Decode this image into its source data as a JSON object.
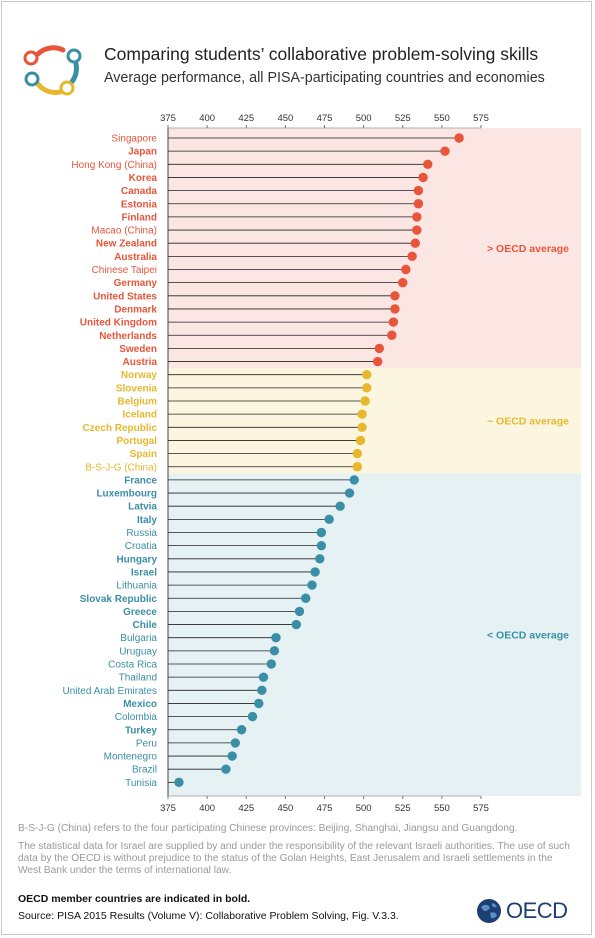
{
  "title": "Comparing students’ collaborative problem-solving skills",
  "subtitle": "Average performance, all PISA-participating countries and economies",
  "colors": {
    "above": "#e8553a",
    "similar": "#e6b82e",
    "below": "#3a8fa6",
    "above_bg": "#fbe6e4",
    "similar_bg": "#fcf6e0",
    "below_bg": "#e6f1f4"
  },
  "chart_data": {
    "type": "lollipop",
    "xlim": [
      375,
      575
    ],
    "xticks": [
      "375",
      "400",
      "425",
      "450",
      "475",
      "500",
      "525",
      "550",
      "575"
    ],
    "groups": [
      {
        "label": "> OECD average",
        "key": "above"
      },
      {
        "label": "~ OECD average",
        "key": "similar"
      },
      {
        "label": "< OECD average",
        "key": "below"
      }
    ],
    "items": [
      {
        "name": "Singapore",
        "value": 561,
        "group": "above",
        "oecd": false
      },
      {
        "name": "Japan",
        "value": 552,
        "group": "above",
        "oecd": true
      },
      {
        "name": "Hong Kong (China)",
        "value": 541,
        "group": "above",
        "oecd": false
      },
      {
        "name": "Korea",
        "value": 538,
        "group": "above",
        "oecd": true
      },
      {
        "name": "Canada",
        "value": 535,
        "group": "above",
        "oecd": true
      },
      {
        "name": "Estonia",
        "value": 535,
        "group": "above",
        "oecd": true
      },
      {
        "name": "Finland",
        "value": 534,
        "group": "above",
        "oecd": true
      },
      {
        "name": "Macao (China)",
        "value": 534,
        "group": "above",
        "oecd": false
      },
      {
        "name": "New Zealand",
        "value": 533,
        "group": "above",
        "oecd": true
      },
      {
        "name": "Australia",
        "value": 531,
        "group": "above",
        "oecd": true
      },
      {
        "name": "Chinese Taipei",
        "value": 527,
        "group": "above",
        "oecd": false
      },
      {
        "name": "Germany",
        "value": 525,
        "group": "above",
        "oecd": true
      },
      {
        "name": "United States",
        "value": 520,
        "group": "above",
        "oecd": true
      },
      {
        "name": "Denmark",
        "value": 520,
        "group": "above",
        "oecd": true
      },
      {
        "name": "United Kingdom",
        "value": 519,
        "group": "above",
        "oecd": true
      },
      {
        "name": "Netherlands",
        "value": 518,
        "group": "above",
        "oecd": true
      },
      {
        "name": "Sweden",
        "value": 510,
        "group": "above",
        "oecd": true
      },
      {
        "name": "Austria",
        "value": 509,
        "group": "above",
        "oecd": true
      },
      {
        "name": "Norway",
        "value": 502,
        "group": "similar",
        "oecd": true
      },
      {
        "name": "Slovenia",
        "value": 502,
        "group": "similar",
        "oecd": true
      },
      {
        "name": "Belgium",
        "value": 501,
        "group": "similar",
        "oecd": true
      },
      {
        "name": "Iceland",
        "value": 499,
        "group": "similar",
        "oecd": true
      },
      {
        "name": "Czech Republic",
        "value": 499,
        "group": "similar",
        "oecd": true
      },
      {
        "name": "Portugal",
        "value": 498,
        "group": "similar",
        "oecd": true
      },
      {
        "name": "Spain",
        "value": 496,
        "group": "similar",
        "oecd": true
      },
      {
        "name": "B-S-J-G (China)",
        "value": 496,
        "group": "similar",
        "oecd": false
      },
      {
        "name": "France",
        "value": 494,
        "group": "below",
        "oecd": true
      },
      {
        "name": "Luxembourg",
        "value": 491,
        "group": "below",
        "oecd": true
      },
      {
        "name": "Latvia",
        "value": 485,
        "group": "below",
        "oecd": true
      },
      {
        "name": "Italy",
        "value": 478,
        "group": "below",
        "oecd": true
      },
      {
        "name": "Russia",
        "value": 473,
        "group": "below",
        "oecd": false
      },
      {
        "name": "Croatia",
        "value": 473,
        "group": "below",
        "oecd": false
      },
      {
        "name": "Hungary",
        "value": 472,
        "group": "below",
        "oecd": true
      },
      {
        "name": "Israel",
        "value": 469,
        "group": "below",
        "oecd": true
      },
      {
        "name": "Lithuania",
        "value": 467,
        "group": "below",
        "oecd": false
      },
      {
        "name": "Slovak Republic",
        "value": 463,
        "group": "below",
        "oecd": true
      },
      {
        "name": "Greece",
        "value": 459,
        "group": "below",
        "oecd": true
      },
      {
        "name": "Chile",
        "value": 457,
        "group": "below",
        "oecd": true
      },
      {
        "name": "Bulgaria",
        "value": 444,
        "group": "below",
        "oecd": false
      },
      {
        "name": "Uruguay",
        "value": 443,
        "group": "below",
        "oecd": false
      },
      {
        "name": "Costa Rica",
        "value": 441,
        "group": "below",
        "oecd": false
      },
      {
        "name": "Thailand",
        "value": 436,
        "group": "below",
        "oecd": false
      },
      {
        "name": "United Arab Emirates",
        "value": 435,
        "group": "below",
        "oecd": false
      },
      {
        "name": "Mexico",
        "value": 433,
        "group": "below",
        "oecd": true
      },
      {
        "name": "Colombia",
        "value": 429,
        "group": "below",
        "oecd": false
      },
      {
        "name": "Turkey",
        "value": 422,
        "group": "below",
        "oecd": true
      },
      {
        "name": "Peru",
        "value": 418,
        "group": "below",
        "oecd": false
      },
      {
        "name": "Montenegro",
        "value": 416,
        "group": "below",
        "oecd": false
      },
      {
        "name": "Brazil",
        "value": 412,
        "group": "below",
        "oecd": false
      },
      {
        "name": "Tunisia",
        "value": 382,
        "group": "below",
        "oecd": false
      }
    ]
  },
  "notes": {
    "bsjg": "B-S-J-G (China) refers to the four participating Chinese provinces: Beijing, Shanghai, Jiangsu and Guangdong.",
    "israel": "The statistical data for Israel are supplied by and under the responsibility of the relevant Israeli authorities. The use of such data by the OECD is without prejudice to the status of the Golan Heights, East Jerusalem and Israeli settlements in the West Bank under the terms of international law.",
    "bold_note": "OECD member countries are indicated in bold.",
    "source": "Source: PISA 2015 Results (Volume V): Collaborative Problem Solving, Fig. V.3.3."
  },
  "logo": {
    "text": "OECD"
  }
}
